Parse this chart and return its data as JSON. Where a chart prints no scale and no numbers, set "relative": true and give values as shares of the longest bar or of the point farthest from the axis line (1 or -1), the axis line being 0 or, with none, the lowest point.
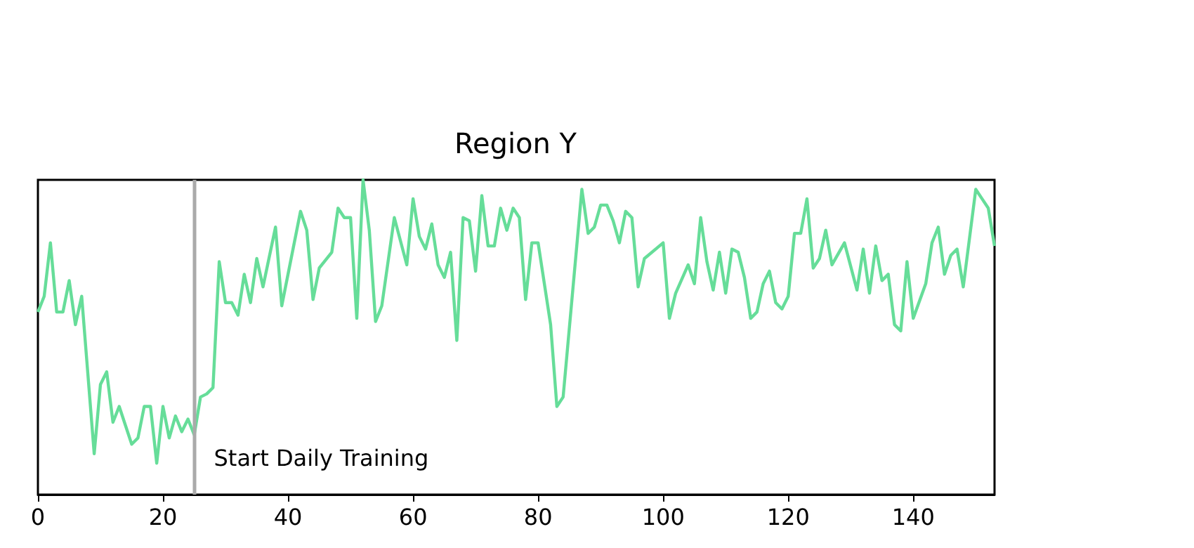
{
  "chart_data": {
    "type": "line",
    "title": "Region Y",
    "relative": true,
    "x": [
      0,
      1,
      2,
      3,
      4,
      5,
      6,
      7,
      9,
      10,
      11,
      12,
      13,
      14,
      15,
      16,
      17,
      18,
      19,
      20,
      21,
      22,
      23,
      24,
      25,
      26,
      27,
      28,
      29,
      30,
      31,
      32,
      33,
      34,
      35,
      36,
      38,
      39,
      42,
      43,
      44,
      45,
      47,
      48,
      49,
      50,
      51,
      52,
      53,
      54,
      55,
      57,
      59,
      60,
      61,
      62,
      63,
      64,
      65,
      66,
      67,
      68,
      69,
      70,
      71,
      72,
      73,
      74,
      75,
      76,
      77,
      78,
      79,
      80,
      82,
      83,
      84,
      87,
      88,
      89,
      90,
      91,
      92,
      93,
      94,
      95,
      96,
      97,
      100,
      101,
      102,
      104,
      105,
      106,
      107,
      108,
      109,
      110,
      111,
      112,
      113,
      114,
      115,
      116,
      117,
      118,
      119,
      120,
      121,
      122,
      123,
      124,
      125,
      126,
      127,
      129,
      131,
      132,
      133,
      134,
      135,
      136,
      137,
      138,
      139,
      140,
      142,
      143,
      144,
      145,
      146,
      147,
      148,
      150,
      151,
      152,
      153
    ],
    "series": [
      {
        "color": "#66dd99",
        "values": [
          0.58,
          0.63,
          0.8,
          0.58,
          0.58,
          0.68,
          0.54,
          0.63,
          0.13,
          0.35,
          0.39,
          0.23,
          0.28,
          0.22,
          0.16,
          0.18,
          0.28,
          0.28,
          0.1,
          0.28,
          0.18,
          0.25,
          0.2,
          0.24,
          0.19,
          0.31,
          0.32,
          0.34,
          0.74,
          0.61,
          0.61,
          0.57,
          0.7,
          0.61,
          0.75,
          0.66,
          0.85,
          0.6,
          0.9,
          0.84,
          0.62,
          0.72,
          0.77,
          0.91,
          0.88,
          0.88,
          0.56,
          1,
          0.84,
          0.55,
          0.6,
          0.88,
          0.73,
          0.94,
          0.82,
          0.78,
          0.86,
          0.73,
          0.69,
          0.77,
          0.49,
          0.88,
          0.87,
          0.71,
          0.95,
          0.79,
          0.79,
          0.91,
          0.84,
          0.91,
          0.88,
          0.62,
          0.8,
          0.8,
          0.54,
          0.28,
          0.31,
          0.97,
          0.83,
          0.85,
          0.92,
          0.92,
          0.87,
          0.8,
          0.9,
          0.88,
          0.66,
          0.75,
          0.8,
          0.56,
          0.64,
          0.73,
          0.67,
          0.88,
          0.74,
          0.65,
          0.77,
          0.64,
          0.78,
          0.77,
          0.69,
          0.56,
          0.58,
          0.67,
          0.71,
          0.61,
          0.59,
          0.63,
          0.83,
          0.83,
          0.94,
          0.72,
          0.75,
          0.84,
          0.73,
          0.8,
          0.65,
          0.78,
          0.64,
          0.79,
          0.68,
          0.7,
          0.54,
          0.52,
          0.74,
          0.56,
          0.67,
          0.8,
          0.85,
          0.7,
          0.76,
          0.78,
          0.66,
          0.97,
          0.94,
          0.91,
          0.79
        ]
      }
    ],
    "xlim": [
      0,
      153
    ],
    "xticks": [
      0,
      20,
      40,
      60,
      80,
      100,
      120,
      140
    ],
    "ref_lines": [
      {
        "axis": "x",
        "value": 25,
        "label": "Start Daily Training",
        "color": "#aaaaaa"
      }
    ],
    "grid": false,
    "marker": "none",
    "line_style": "solid"
  }
}
